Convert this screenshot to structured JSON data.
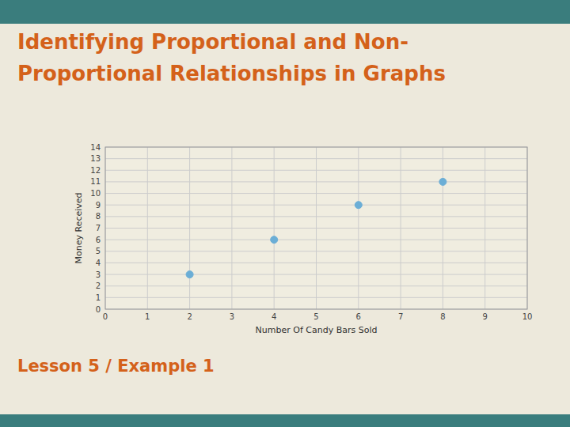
{
  "chart_data": {
    "type": "scatter",
    "title": [
      "Identifying Proportional and Non-",
      "Proportional Relationships in Graphs"
    ],
    "subtitle": "Lesson 5 / Example 1",
    "xlabel": "Number Of Candy Bars Sold",
    "ylabel": "Money Received",
    "x": [
      2,
      4,
      6,
      8
    ],
    "values": [
      3,
      6,
      9,
      11
    ],
    "color": "#6baed6",
    "xlim": [
      0,
      10
    ],
    "ylim": [
      0,
      14
    ],
    "xticks": [
      0,
      1,
      2,
      3,
      4,
      5,
      6,
      7,
      8,
      9,
      10
    ],
    "yticks": [
      0,
      1,
      2,
      3,
      4,
      5,
      6,
      7,
      8,
      9,
      10,
      11,
      12,
      13,
      14
    ],
    "grid": true
  }
}
